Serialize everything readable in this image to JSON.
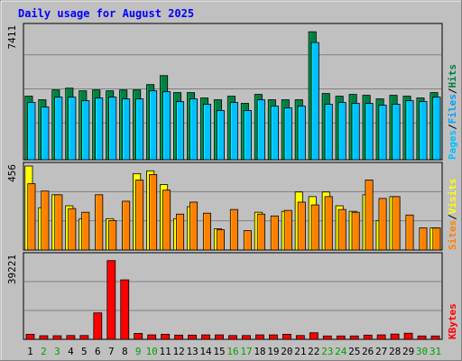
{
  "chart_data": {
    "type": "bar",
    "title": "Daily usage for August 2025",
    "categories": [
      "1",
      "2",
      "3",
      "4",
      "5",
      "6",
      "7",
      "8",
      "9",
      "10",
      "11",
      "12",
      "13",
      "14",
      "15",
      "16",
      "17",
      "18",
      "19",
      "20",
      "21",
      "22",
      "23",
      "24",
      "25",
      "26",
      "27",
      "28",
      "29",
      "30",
      "31"
    ],
    "weekend_days": [
      "2",
      "3",
      "9",
      "10",
      "16",
      "17",
      "23",
      "24",
      "30",
      "31"
    ],
    "panels": [
      {
        "id": "top",
        "ymax_label": "7411",
        "ymax": 7411,
        "legend": [
          "Pages",
          "/",
          "Files",
          "/",
          "Hits"
        ],
        "series": [
          {
            "name": "Hits",
            "color": "#008040",
            "values": [
              3550,
              3350,
              3900,
              4000,
              3850,
              3900,
              3850,
              3900,
              3900,
              4200,
              4700,
              3750,
              3750,
              3450,
              3350,
              3550,
              3150,
              3650,
              3350,
              3350,
              3350,
              7150,
              3700,
              3550,
              3650,
              3600,
              3400,
              3600,
              3550,
              3450,
              3750
            ]
          },
          {
            "name": "Files",
            "color": "#00c0ff",
            "values": [
              3200,
              2950,
              3500,
              3500,
              3300,
              3450,
              3500,
              3400,
              3400,
              3850,
              3800,
              3250,
              3400,
              3100,
              2750,
              3200,
              2750,
              3350,
              3000,
              2900,
              3000,
              6550,
              3100,
              3200,
              3150,
              3150,
              3050,
              3100,
              3300,
              3250,
              3500
            ]
          },
          {
            "name": "Pages",
            "color": "#00a0ff",
            "values": [
              0,
              0,
              0,
              0,
              0,
              0,
              0,
              0,
              0,
              0,
              0,
              0,
              0,
              0,
              0,
              0,
              0,
              0,
              0,
              0,
              0,
              0,
              0,
              0,
              0,
              0,
              0,
              0,
              0,
              0,
              0
            ]
          }
        ]
      },
      {
        "id": "middle",
        "ymax_label": "456",
        "ymax": 456,
        "legend": [
          "Sites",
          "/",
          "Visits"
        ],
        "series": [
          {
            "name": "Visits",
            "color": "#ffff00",
            "values": [
              456,
              230,
              300,
              240,
              170,
              0,
              170,
              0,
              415,
              430,
              355,
              170,
              235,
              0,
              115,
              0,
              0,
              205,
              0,
              210,
              315,
              290,
              315,
              240,
              210,
              300,
              160,
              290,
              0,
              0,
              120
            ]
          },
          {
            "name": "Sites",
            "color": "#ff8000",
            "values": [
              360,
              320,
              300,
              225,
              205,
              300,
              160,
              265,
              380,
              410,
              325,
              195,
              260,
              200,
              110,
              220,
              105,
              195,
              185,
              215,
              260,
              245,
              290,
              220,
              205,
              380,
              280,
              290,
              190,
              120,
              120
            ]
          }
        ]
      },
      {
        "id": "bottom",
        "ymax_label": "39221",
        "ymax": 39221,
        "legend": [
          "KBytes"
        ],
        "series": [
          {
            "name": "KBytes",
            "color": "#ff0000",
            "values": [
              2400,
              1700,
              1700,
              1800,
              1800,
              12500,
              37200,
              28100,
              2800,
              2100,
              2400,
              2000,
              2000,
              2100,
              2100,
              1800,
              1800,
              2100,
              2100,
              2400,
              1800,
              3100,
              1600,
              1600,
              1600,
              2000,
              2100,
              2500,
              2900,
              1600,
              1600
            ]
          }
        ]
      }
    ],
    "grid": true,
    "colors": {
      "background": "#c0c0c0",
      "plot_background": "#c0c0c0",
      "title": "#0000ff",
      "weekend_label": "#00a000",
      "weekday_label": "#000000",
      "grid": "#808080",
      "files_legend": "#00a0ff",
      "pages_legend": "#00c0ff",
      "hits_legend": "#008040",
      "sites_legend": "#ff8000",
      "visits_legend": "#ffff00",
      "kbytes_legend": "#ff0000"
    }
  }
}
